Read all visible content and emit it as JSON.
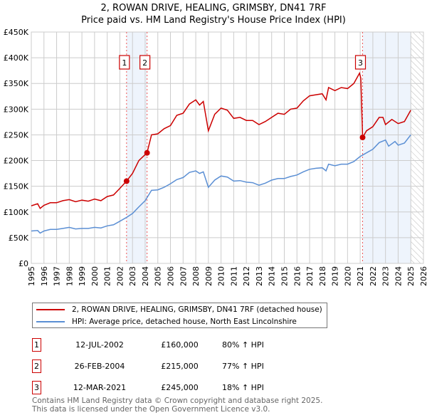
{
  "chart_data": {
    "type": "line",
    "title": "2, ROWAN DRIVE, HEALING, GRIMSBY, DN41 7RF",
    "subtitle": "Price paid vs. HM Land Registry's House Price Index (HPI)",
    "xlim": [
      1995,
      2026
    ],
    "ylim": [
      0,
      450000
    ],
    "x_ticks": [
      "1995",
      "1996",
      "1997",
      "1998",
      "1999",
      "2000",
      "2001",
      "2002",
      "2003",
      "2004",
      "2005",
      "2006",
      "2007",
      "2008",
      "2009",
      "2010",
      "2011",
      "2012",
      "2013",
      "2014",
      "2015",
      "2016",
      "2017",
      "2018",
      "2019",
      "2020",
      "2021",
      "2022",
      "2023",
      "2024",
      "2025",
      "2026"
    ],
    "y_ticks": [
      {
        "v": 0,
        "label": "£0"
      },
      {
        "v": 50000,
        "label": "£50K"
      },
      {
        "v": 100000,
        "label": "£100K"
      },
      {
        "v": 150000,
        "label": "£150K"
      },
      {
        "v": 200000,
        "label": "£200K"
      },
      {
        "v": 250000,
        "label": "£250K"
      },
      {
        "v": 300000,
        "label": "£300K"
      },
      {
        "v": 350000,
        "label": "£350K"
      },
      {
        "v": 400000,
        "label": "£400K"
      },
      {
        "v": 450000,
        "label": "£450K"
      }
    ],
    "grid": true,
    "series": [
      {
        "name": "2, ROWAN DRIVE, HEALING, GRIMSBY, DN41 7RF (detached house)",
        "color": "#cc0000",
        "x": [
          1995,
          1995.5,
          1995.7,
          1996,
          1996.5,
          1997,
          1997.5,
          1998,
          1998.5,
          1999,
          1999.5,
          2000,
          2000.5,
          2001,
          2001.5,
          2002,
          2002.53,
          2003,
          2003.5,
          2004.15,
          2004.5,
          2005,
          2005.5,
          2006,
          2006.5,
          2007,
          2007.5,
          2008,
          2008.3,
          2008.6,
          2009,
          2009.5,
          2010,
          2010.5,
          2011,
          2011.5,
          2012,
          2012.5,
          2013,
          2013.5,
          2014,
          2014.5,
          2015,
          2015.5,
          2016,
          2016.5,
          2017,
          2017.5,
          2018,
          2018.3,
          2018.5,
          2019,
          2019.5,
          2020,
          2020.5,
          2020.95,
          2021.05,
          2021.19,
          2021.5,
          2022,
          2022.5,
          2022.8,
          2023,
          2023.5,
          2024,
          2024.5,
          2025
        ],
        "y": [
          112000,
          116000,
          107000,
          113000,
          118000,
          118000,
          122000,
          124000,
          120000,
          123000,
          121000,
          125000,
          122000,
          130000,
          133000,
          146000,
          160000,
          175000,
          200000,
          215000,
          250000,
          252000,
          262000,
          268000,
          288000,
          292000,
          310000,
          318000,
          308000,
          315000,
          258000,
          290000,
          302000,
          298000,
          282000,
          284000,
          278000,
          278000,
          270000,
          276000,
          284000,
          292000,
          290000,
          300000,
          302000,
          316000,
          326000,
          328000,
          330000,
          318000,
          342000,
          336000,
          342000,
          340000,
          350000,
          370000,
          360000,
          245000,
          258000,
          266000,
          284000,
          284000,
          270000,
          280000,
          272000,
          276000,
          298000
        ]
      },
      {
        "name": "HPI: Average price, detached house, North East Lincolnshire",
        "color": "#5b8fd4",
        "x": [
          1995,
          1995.5,
          1995.7,
          1996,
          1996.5,
          1997,
          1997.5,
          1998,
          1998.5,
          1999,
          1999.5,
          2000,
          2000.5,
          2001,
          2001.5,
          2002,
          2002.5,
          2003,
          2003.5,
          2004,
          2004.5,
          2005,
          2005.5,
          2006,
          2006.5,
          2007,
          2007.5,
          2008,
          2008.3,
          2008.6,
          2009,
          2009.5,
          2010,
          2010.5,
          2011,
          2011.5,
          2012,
          2012.5,
          2013,
          2013.5,
          2014,
          2014.5,
          2015,
          2015.5,
          2016,
          2016.5,
          2017,
          2017.5,
          2018,
          2018.3,
          2018.5,
          2019,
          2019.5,
          2020,
          2020.5,
          2021,
          2021.5,
          2022,
          2022.5,
          2023,
          2023.25,
          2023.75,
          2024,
          2024.5,
          2025
        ],
        "y": [
          63000,
          64000,
          59000,
          63000,
          66000,
          66000,
          68000,
          70000,
          67000,
          68000,
          68000,
          70000,
          69000,
          73000,
          75000,
          82000,
          89000,
          97000,
          110000,
          122000,
          142000,
          143000,
          148000,
          155000,
          163000,
          167000,
          177000,
          180000,
          175000,
          178000,
          148000,
          162000,
          170000,
          168000,
          160000,
          161000,
          158000,
          157000,
          152000,
          156000,
          162000,
          165000,
          165000,
          169000,
          172000,
          178000,
          183000,
          185000,
          186000,
          180000,
          193000,
          190000,
          193000,
          193000,
          198000,
          208000,
          215000,
          222000,
          235000,
          240000,
          228000,
          237000,
          230000,
          234000,
          250000
        ]
      }
    ],
    "sales": [
      {
        "id": "1",
        "date": "12-JUL-2002",
        "x": 2002.53,
        "price": 160000,
        "price_label": "£160,000",
        "hpi_label": "80% ↑ HPI"
      },
      {
        "id": "2",
        "date": "26-FEB-2004",
        "x": 2004.15,
        "price": 215000,
        "price_label": "£215,000",
        "hpi_label": "77% ↑ HPI"
      },
      {
        "id": "3",
        "date": "12-MAR-2021",
        "x": 2021.19,
        "price": 245000,
        "price_label": "£245,000",
        "hpi_label": "18% ↑ HPI"
      }
    ],
    "shaded_ranges": [
      [
        2002.53,
        2004.15
      ],
      [
        2021.19,
        2025
      ]
    ],
    "forecast_hatch": [
      2025,
      2026
    ],
    "legend_position": "below"
  },
  "footer": {
    "line1": "Contains HM Land Registry data © Crown copyright and database right 2025.",
    "line2": "This data is licensed under the Open Government Licence v3.0."
  }
}
